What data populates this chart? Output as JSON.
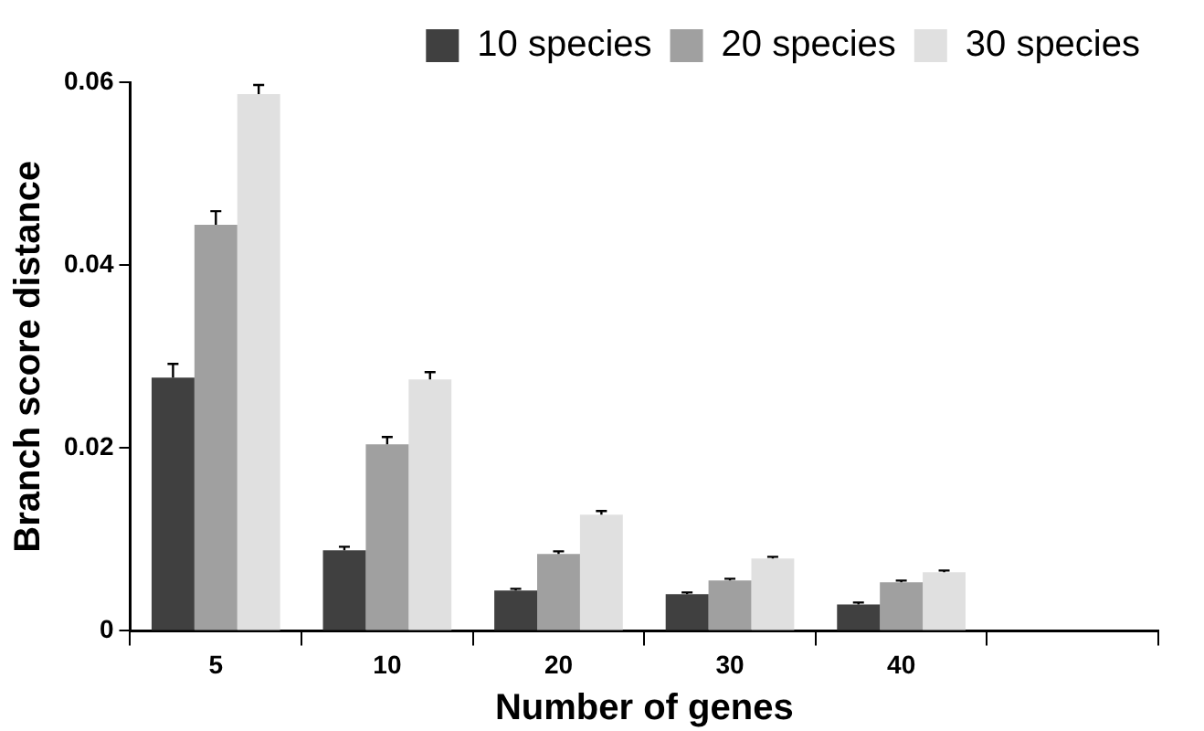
{
  "chart_data": {
    "type": "bar",
    "xlabel": "Number of genes",
    "ylabel": "Branch score distance",
    "categories": [
      "5",
      "10",
      "20",
      "30",
      "40",
      null
    ],
    "series": [
      {
        "name": "10 species",
        "color": "#404040",
        "values": [
          0.0277,
          0.0088,
          0.0044,
          0.004,
          0.0029,
          null
        ],
        "errors": [
          [
            0.0277,
            0.0292
          ],
          [
            0.0088,
            0.0092
          ],
          [
            0.0044,
            0.0046
          ],
          [
            0.004,
            0.0042
          ],
          [
            0.0029,
            0.0031
          ],
          null
        ]
      },
      {
        "name": "20 species",
        "color": "#a0a0a0",
        "values": [
          0.0444,
          0.0204,
          0.0084,
          0.0055,
          0.0053,
          null
        ],
        "errors": [
          [
            0.0444,
            0.0459
          ],
          [
            0.0204,
            0.0212
          ],
          [
            0.0084,
            0.0087
          ],
          [
            0.0055,
            0.0057
          ],
          [
            0.0053,
            0.0055
          ],
          null
        ]
      },
      {
        "name": "30 species",
        "color": "#e0e0e0",
        "values": [
          0.0587,
          0.0275,
          0.0127,
          0.0079,
          0.0064,
          null
        ],
        "errors": [
          [
            0.0587,
            0.0597
          ],
          [
            0.0275,
            0.0283
          ],
          [
            0.0127,
            0.0131
          ],
          [
            0.0079,
            0.0081
          ],
          [
            0.0064,
            0.0066
          ],
          null
        ]
      }
    ],
    "ylim": [
      0,
      0.06
    ],
    "yticks": [
      0,
      0.02,
      0.04,
      0.06
    ],
    "grid": false,
    "legend": "top right"
  }
}
